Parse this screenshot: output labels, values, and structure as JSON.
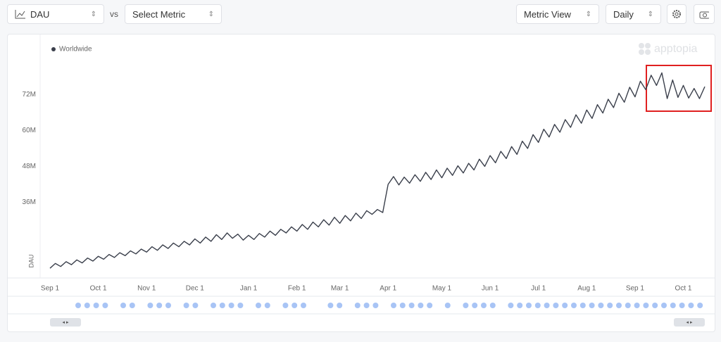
{
  "toolbar": {
    "metric": "DAU",
    "vs": "vs",
    "compare": "Select Metric",
    "view": "Metric View",
    "interval": "Daily"
  },
  "chart_data": {
    "type": "line",
    "watermark": "apptopia",
    "y_label": "DAU",
    "categories": [
      "Sep 1",
      null,
      null,
      null,
      null,
      null,
      null,
      null,
      null,
      "Oct 1",
      null,
      null,
      null,
      null,
      null,
      null,
      null,
      null,
      "Nov 1",
      null,
      null,
      null,
      null,
      null,
      null,
      null,
      null,
      "Dec 1",
      null,
      null,
      null,
      null,
      null,
      null,
      null,
      null,
      null,
      "Jan 1",
      null,
      null,
      null,
      null,
      null,
      null,
      null,
      null,
      "Feb 1",
      null,
      null,
      null,
      null,
      null,
      null,
      null,
      "Mar 1",
      null,
      null,
      null,
      null,
      null,
      null,
      null,
      null,
      "Apr 1",
      null,
      null,
      null,
      null,
      null,
      null,
      null,
      null,
      null,
      "May 1",
      null,
      null,
      null,
      null,
      null,
      null,
      null,
      null,
      "Jun 1",
      null,
      null,
      null,
      null,
      null,
      null,
      null,
      null,
      "Jul 1",
      null,
      null,
      null,
      null,
      null,
      null,
      null,
      null,
      "Aug 1",
      null,
      null,
      null,
      null,
      null,
      null,
      null,
      null,
      "Sep 1",
      null,
      null,
      null,
      null,
      null,
      null,
      null,
      null,
      "Oct 1",
      null,
      null,
      null,
      null
    ],
    "series": [
      {
        "name": "Worldwide",
        "color": "#3a3f4b",
        "values": [
          14.0,
          15.6,
          14.6,
          16.2,
          15.2,
          16.8,
          15.8,
          17.4,
          16.4,
          18.0,
          17.0,
          18.6,
          17.6,
          19.2,
          18.2,
          19.8,
          18.8,
          20.4,
          19.4,
          21.2,
          20.0,
          21.8,
          20.6,
          22.4,
          21.2,
          23.0,
          21.8,
          23.8,
          22.4,
          24.4,
          23.0,
          25.2,
          23.6,
          25.8,
          24.0,
          25.4,
          23.4,
          25.0,
          23.6,
          25.6,
          24.4,
          26.4,
          25.0,
          27.0,
          25.8,
          27.8,
          26.4,
          28.6,
          27.0,
          29.4,
          27.8,
          30.2,
          28.4,
          31.0,
          29.0,
          31.6,
          29.8,
          32.4,
          30.6,
          33.2,
          32.0,
          33.6,
          32.6,
          42.0,
          44.6,
          41.8,
          44.4,
          42.4,
          45.2,
          43.0,
          46.0,
          43.6,
          46.8,
          44.2,
          47.4,
          45.0,
          48.2,
          45.8,
          49.0,
          46.8,
          50.4,
          48.0,
          51.6,
          49.2,
          53.0,
          50.6,
          54.6,
          52.0,
          56.4,
          54.0,
          58.6,
          56.0,
          60.4,
          57.8,
          62.0,
          59.4,
          63.6,
          61.0,
          65.2,
          62.4,
          66.8,
          64.0,
          68.6,
          65.8,
          70.4,
          67.6,
          72.4,
          69.4,
          74.4,
          71.2,
          76.4,
          73.6,
          78.4,
          75.0,
          79.2,
          70.6,
          76.8,
          71.0,
          75.0,
          70.8,
          74.0,
          70.6,
          74.6
        ]
      }
    ],
    "ylim": [
      11,
      92
    ],
    "yticks": [
      {
        "value": 36,
        "label": "36M"
      },
      {
        "value": 48,
        "label": "48M"
      },
      {
        "value": 60,
        "label": "60M"
      },
      {
        "value": 72,
        "label": "72M"
      }
    ],
    "grid": false
  }
}
